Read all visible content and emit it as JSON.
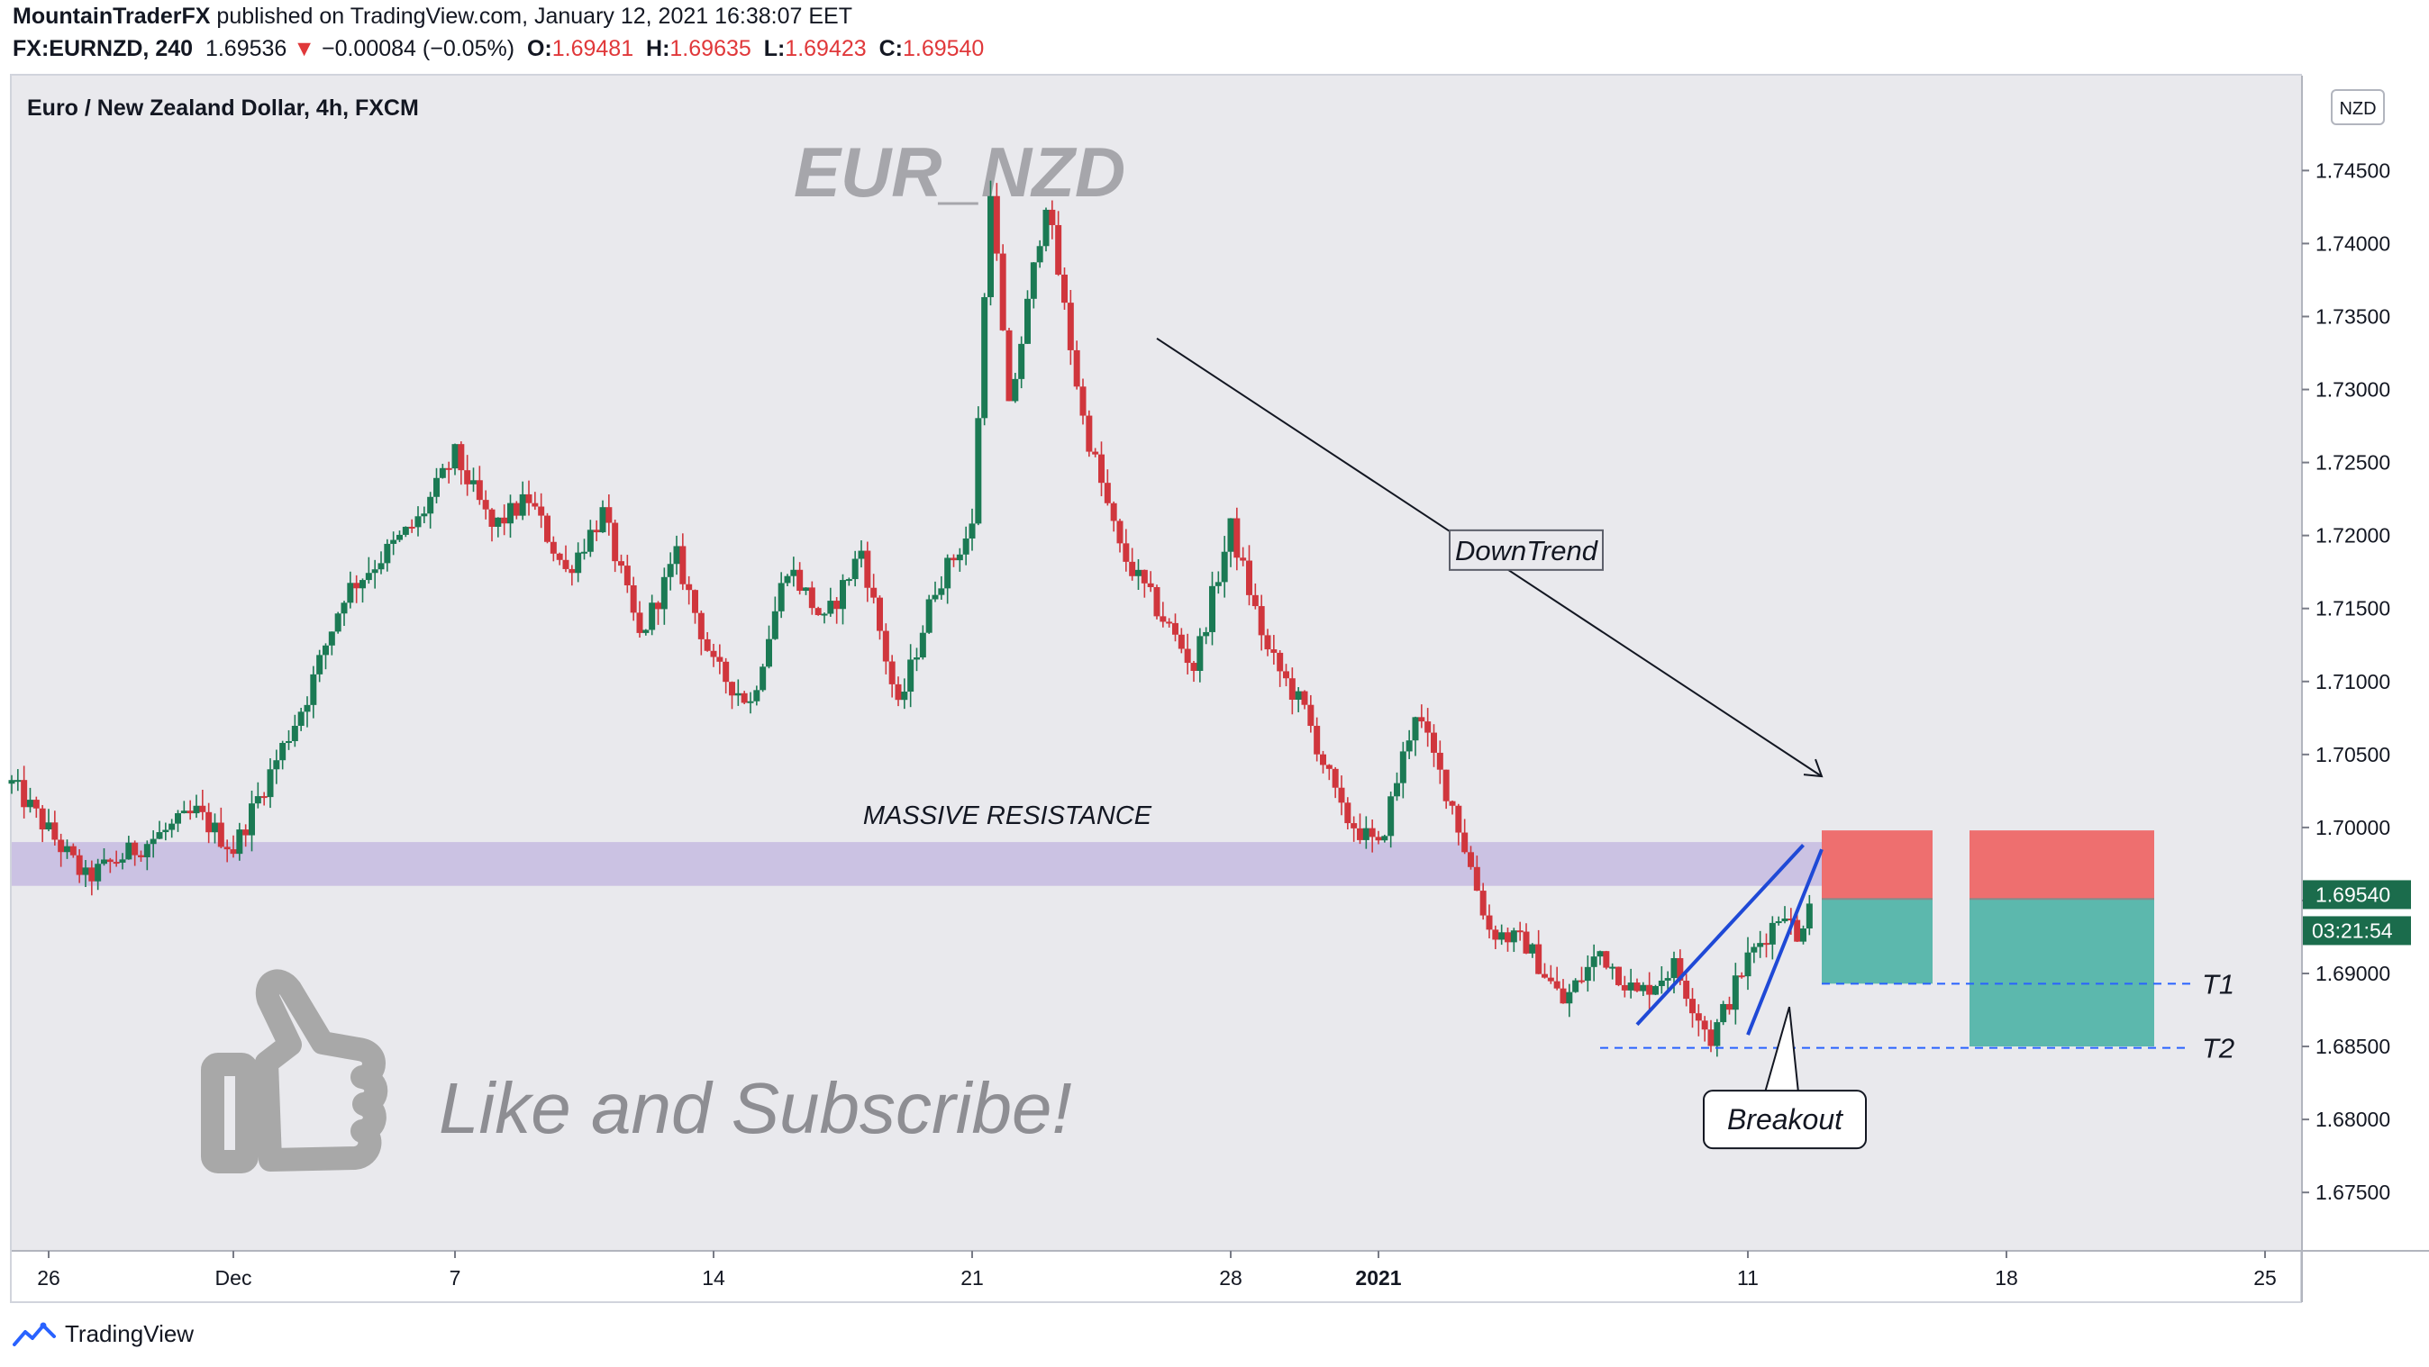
{
  "header": {
    "author": "MountainTraderFX",
    "published_text": "published on TradingView.com, January 12, 2021 16:38:07 EET",
    "symbol_interval": "FX:EURNZD, 240",
    "last_price": "1.69536",
    "change": "−0.00084 (−0.05%)",
    "open_label": "O:",
    "open": "1.69481",
    "high_label": "H:",
    "high": "1.69635",
    "low_label": "L:",
    "low": "1.69423",
    "close_label": "C:",
    "close": "1.69540"
  },
  "colors": {
    "up": "#26a69a",
    "down": "#ef5350",
    "candle_up": "#1b7a54",
    "candle_down": "#d0363d",
    "bg": "#e9e9ed",
    "zone": "#cbc2e3",
    "stop": "#ee6f6f",
    "target": "#5cb8ad",
    "wedge": "#1f49d6"
  },
  "footer": {
    "brand": "TradingView",
    "icon": "tradingview-logo-icon"
  },
  "chart_data": {
    "type": "candlestick",
    "title": "Euro / New Zealand Dollar, 4h, FXCM",
    "currency": "NZD",
    "watermark": "EUR_NZD",
    "ylim": [
      1.671,
      1.7515
    ],
    "y_ticks": [
      "1.74500",
      "1.74000",
      "1.73500",
      "1.73000",
      "1.72500",
      "1.72000",
      "1.71500",
      "1.71000",
      "1.70500",
      "1.70000",
      "1.69500",
      "1.69000",
      "1.68500",
      "1.68000",
      "1.67500"
    ],
    "x_start": "2020-11-25",
    "x_end": "2021-01-26",
    "x_ticks": [
      {
        "date": "2020-11-26",
        "label": "26"
      },
      {
        "date": "2020-12-01",
        "label": "Dec"
      },
      {
        "date": "2020-12-07",
        "label": "7"
      },
      {
        "date": "2020-12-14",
        "label": "14"
      },
      {
        "date": "2020-12-21",
        "label": "21"
      },
      {
        "date": "2020-12-28",
        "label": "28"
      },
      {
        "date": "2021-01-01",
        "label": "2021"
      },
      {
        "date": "2021-01-11",
        "label": "11"
      },
      {
        "date": "2021-01-18",
        "label": "18"
      },
      {
        "date": "2021-01-25",
        "label": "25"
      }
    ],
    "last_price_label": "1.69540",
    "countdown_label": "03:21:54",
    "anchors": [
      {
        "date": "2020-11-25",
        "price": 1.703
      },
      {
        "date": "2020-11-27",
        "price": 1.6965
      },
      {
        "date": "2020-11-30",
        "price": 1.701
      },
      {
        "date": "2020-12-01",
        "price": 1.6985
      },
      {
        "date": "2020-12-03",
        "price": 1.709
      },
      {
        "date": "2020-12-04",
        "price": 1.716
      },
      {
        "date": "2020-12-06",
        "price": 1.721
      },
      {
        "date": "2020-12-07",
        "price": 1.7255
      },
      {
        "date": "2020-12-08",
        "price": 1.7205
      },
      {
        "date": "2020-12-09",
        "price": 1.7225
      },
      {
        "date": "2020-12-10",
        "price": 1.7175
      },
      {
        "date": "2020-12-11",
        "price": 1.7215
      },
      {
        "date": "2020-12-12",
        "price": 1.713
      },
      {
        "date": "2020-12-13",
        "price": 1.7185
      },
      {
        "date": "2020-12-14",
        "price": 1.711
      },
      {
        "date": "2020-12-15",
        "price": 1.7085
      },
      {
        "date": "2020-12-16",
        "price": 1.718
      },
      {
        "date": "2020-12-17",
        "price": 1.714
      },
      {
        "date": "2020-12-18",
        "price": 1.719
      },
      {
        "date": "2020-12-19",
        "price": 1.708
      },
      {
        "date": "2020-12-20",
        "price": 1.7165
      },
      {
        "date": "2020-12-21",
        "price": 1.7205
      },
      {
        "date": "2020-12-21T12:00",
        "price": 1.744
      },
      {
        "date": "2020-12-22",
        "price": 1.7285
      },
      {
        "date": "2020-12-23",
        "price": 1.743
      },
      {
        "date": "2020-12-24",
        "price": 1.728
      },
      {
        "date": "2020-12-25",
        "price": 1.719
      },
      {
        "date": "2020-12-27",
        "price": 1.711
      },
      {
        "date": "2020-12-28",
        "price": 1.7205
      },
      {
        "date": "2020-12-29",
        "price": 1.712
      },
      {
        "date": "2020-12-30",
        "price": 1.708
      },
      {
        "date": "2020-12-31",
        "price": 1.701
      },
      {
        "date": "2021-01-01",
        "price": 1.6985
      },
      {
        "date": "2021-01-02",
        "price": 1.708
      },
      {
        "date": "2021-01-03",
        "price": 1.7015
      },
      {
        "date": "2021-01-04",
        "price": 1.693
      },
      {
        "date": "2021-01-05",
        "price": 1.692
      },
      {
        "date": "2021-01-06",
        "price": 1.688
      },
      {
        "date": "2021-01-07",
        "price": 1.6915
      },
      {
        "date": "2021-01-08",
        "price": 1.6885
      },
      {
        "date": "2021-01-09",
        "price": 1.6905
      },
      {
        "date": "2021-01-10",
        "price": 1.6855
      },
      {
        "date": "2021-01-11",
        "price": 1.691
      },
      {
        "date": "2021-01-12",
        "price": 1.6945
      },
      {
        "date": "2021-01-12T08:00",
        "price": 1.692
      },
      {
        "date": "2021-01-12T16:00",
        "price": 1.6954
      }
    ],
    "zones": [
      {
        "name": "massive-resistance",
        "label": "MASSIVE RESISTANCE",
        "from": "2020-11-25",
        "to": "2021-01-15",
        "y_top": 1.699,
        "y_bottom": 1.696
      }
    ],
    "annotations": [
      {
        "name": "downtrend-label",
        "text": "DownTrend",
        "date": "2021-01-05",
        "price": 1.719
      },
      {
        "name": "breakout-label",
        "text": "Breakout",
        "date": "2021-01-12",
        "price": 1.68
      },
      {
        "name": "cta-text",
        "text": "Like and Subscribe!"
      }
    ],
    "lines": [
      {
        "name": "downtrend-arrow",
        "from": {
          "date": "2020-12-26",
          "price": 1.7335
        },
        "to": {
          "date": "2021-01-13",
          "price": 1.7035
        }
      },
      {
        "name": "wedge-upper-line",
        "from": {
          "date": "2021-01-08",
          "price": 1.6865
        },
        "to": {
          "date": "2021-01-12T12:00",
          "price": 1.6988
        }
      },
      {
        "name": "wedge-lower-line",
        "from": {
          "date": "2021-01-11",
          "price": 1.6858
        },
        "to": {
          "date": "2021-01-13",
          "price": 1.6985
        }
      }
    ],
    "targets": [
      {
        "label": "T1",
        "price": 1.6893,
        "from": "2021-01-13",
        "to": "2021-01-23"
      },
      {
        "label": "T2",
        "price": 1.6849,
        "from": "2021-01-07",
        "to": "2021-01-23"
      }
    ],
    "positions": [
      {
        "name": "short-position-1",
        "from": "2021-01-13",
        "to": "2021-01-16",
        "entry": 1.6951,
        "stop": 1.6998,
        "target": 1.6893
      },
      {
        "name": "short-position-2",
        "from": "2021-01-17",
        "to": "2021-01-22",
        "entry": 1.6951,
        "stop": 1.6998,
        "target": 1.685
      }
    ]
  }
}
